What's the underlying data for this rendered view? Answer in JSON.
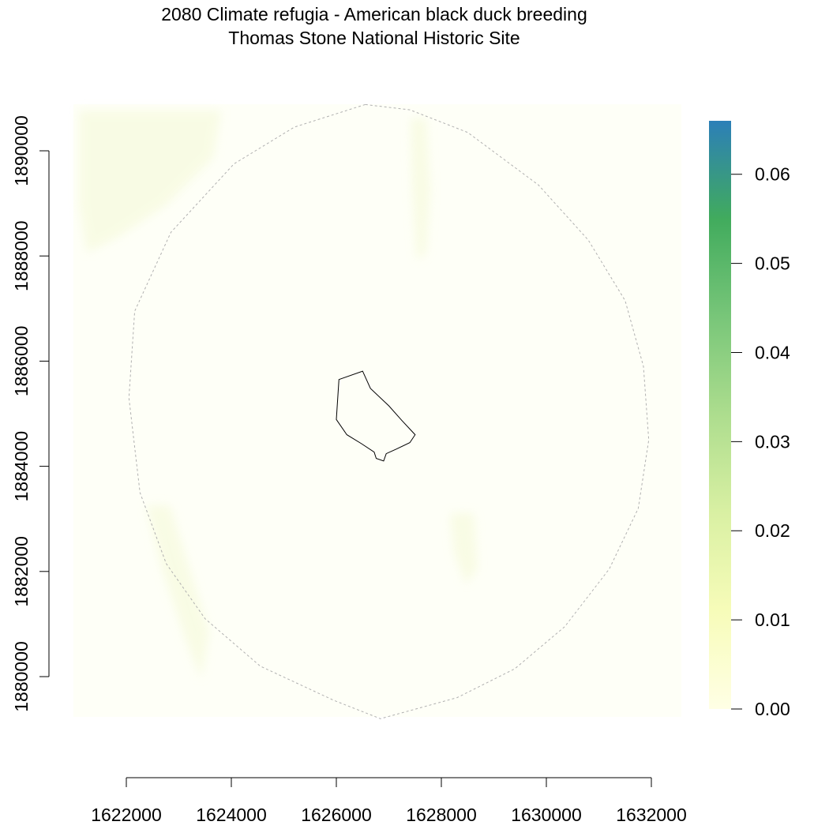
{
  "title": {
    "line1": "2080 Climate refugia - American black duck breeding",
    "line2": "Thomas Stone National Historic Site"
  },
  "colors": {
    "ramp": [
      "#ffffe5",
      "#f7fcb9",
      "#d9f0a3",
      "#addd8e",
      "#78c679",
      "#41ab5d",
      "#2c7fb8"
    ],
    "raster_tint": "#f4f9d6",
    "buffer_outline": "#b0b0b0",
    "park_outline": "#000000"
  },
  "chart_data": {
    "type": "heatmap",
    "x_ticks": [
      "1622000",
      "1624000",
      "1626000",
      "1628000",
      "1630000",
      "1632000"
    ],
    "y_ticks": [
      "1880000",
      "1882000",
      "1884000",
      "1886000",
      "1888000",
      "1890000"
    ],
    "xlim": [
      1621000,
      1633000
    ],
    "ylim": [
      1879000,
      1891000
    ],
    "legend": {
      "ticks": [
        "0.00",
        "0.01",
        "0.02",
        "0.03",
        "0.04",
        "0.05",
        "0.06"
      ],
      "values": [
        0,
        0.01,
        0.02,
        0.03,
        0.04,
        0.05,
        0.06
      ],
      "min": 0,
      "max": 0.066,
      "position": "right"
    },
    "buffer_polygon": {
      "style": "dashed",
      "points": [
        [
          1626550,
          1890880
        ],
        [
          1625200,
          1890450
        ],
        [
          1624050,
          1889750
        ],
        [
          1622850,
          1888450
        ],
        [
          1622160,
          1886950
        ],
        [
          1622050,
          1885300
        ],
        [
          1622260,
          1883500
        ],
        [
          1622760,
          1882150
        ],
        [
          1623500,
          1881100
        ],
        [
          1624550,
          1880200
        ],
        [
          1625950,
          1879550
        ],
        [
          1626840,
          1879200
        ],
        [
          1628300,
          1879600
        ],
        [
          1629400,
          1880150
        ],
        [
          1630350,
          1880950
        ],
        [
          1631200,
          1882050
        ],
        [
          1631750,
          1883200
        ],
        [
          1631950,
          1884500
        ],
        [
          1631850,
          1885900
        ],
        [
          1631500,
          1887150
        ],
        [
          1630800,
          1888300
        ],
        [
          1629850,
          1889350
        ],
        [
          1628500,
          1890350
        ],
        [
          1627400,
          1890780
        ]
      ]
    },
    "park_boundary": {
      "points": [
        [
          1626050,
          1885650
        ],
        [
          1626500,
          1885810
        ],
        [
          1626650,
          1885480
        ],
        [
          1627000,
          1885150
        ],
        [
          1627250,
          1884870
        ],
        [
          1627500,
          1884600
        ],
        [
          1627400,
          1884450
        ],
        [
          1627150,
          1884330
        ],
        [
          1626950,
          1884240
        ],
        [
          1626900,
          1884100
        ],
        [
          1626760,
          1884150
        ],
        [
          1626720,
          1884270
        ],
        [
          1626480,
          1884430
        ],
        [
          1626200,
          1884600
        ],
        [
          1626000,
          1884890
        ]
      ]
    }
  }
}
